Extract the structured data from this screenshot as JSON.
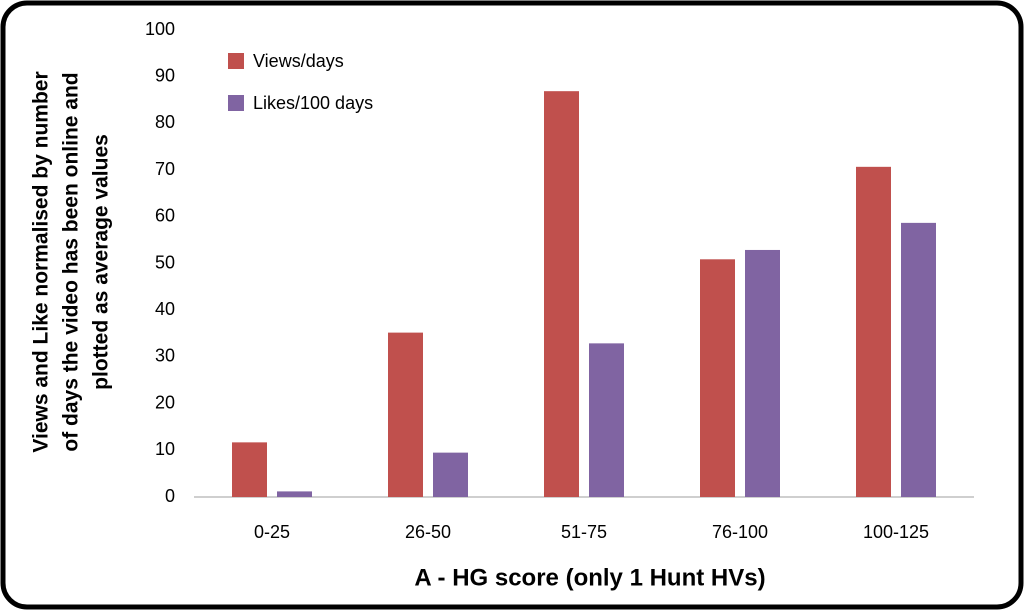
{
  "chart_data": {
    "type": "bar",
    "x_label": "A - HG score (only 1 Hunt HVs)",
    "y_label": [
      "Views and Like normalised by number",
      "of days the video has been online and",
      "plotted as average values"
    ],
    "categories": [
      "0-25",
      "26-50",
      "51-75",
      "76-100",
      "100-125"
    ],
    "series": [
      {
        "name": "Views/days",
        "color": "#c0504d",
        "values": [
          11.7,
          35.2,
          86.9,
          50.9,
          70.7
        ]
      },
      {
        "name": "Likes/100 days",
        "color": "#8064a2",
        "values": [
          1.2,
          9.5,
          32.9,
          52.9,
          58.7
        ]
      }
    ],
    "ylim": [
      0,
      100
    ],
    "yticks": [
      0,
      10,
      20,
      30,
      40,
      50,
      60,
      70,
      80,
      90,
      100
    ],
    "grid": false,
    "legend": "top-left"
  }
}
